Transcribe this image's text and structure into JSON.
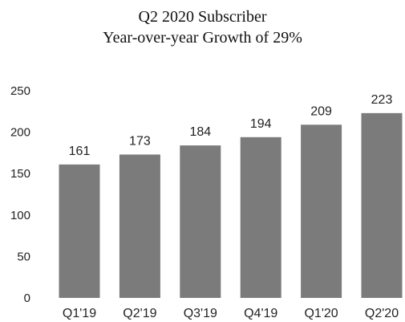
{
  "chart_data": {
    "type": "bar",
    "title": "Q2 2020 Subscriber",
    "subtitle": "Year-over-year Growth of 29%",
    "categories": [
      "Q1'19",
      "Q2'19",
      "Q3'19",
      "Q4'19",
      "Q1'20",
      "Q2'20"
    ],
    "values": [
      161,
      173,
      184,
      194,
      209,
      223
    ],
    "yticks": [
      0,
      50,
      100,
      150,
      200,
      250
    ],
    "ylim": [
      0,
      250
    ],
    "xlabel": "",
    "ylabel": "",
    "grid": false,
    "legend": "none",
    "bar_color": "#7b7b7b"
  }
}
